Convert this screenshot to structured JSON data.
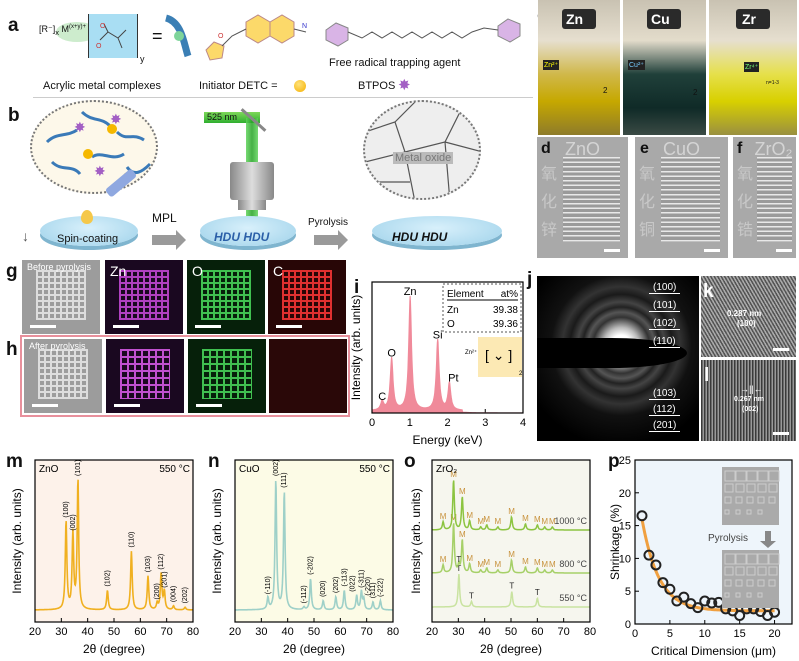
{
  "a": {
    "label": "a",
    "formula_ion": "[R⁻]",
    "formula_sub_x": "x",
    "formula_metal": "M",
    "formula_charge": "(x+y)+",
    "formula_sub_y": "y",
    "equals": "=",
    "caption_complex": "Acrylic metal complexes",
    "caption_detc": "Initiator DETC =",
    "caption_btpos": "BTPOS",
    "caption_trap": "Free radical trapping agent",
    "detc_color": "#f5b800",
    "btpos_color": "#a35fc4"
  },
  "b": {
    "label": "b",
    "wavelength": "525 nm",
    "step1": "Spin-coating",
    "step2": "MPL",
    "pattern1": "HDU HDU",
    "step3": "Pyrolysis",
    "pattern2": "HDU HDU",
    "metal_oxide": "Metal oxide"
  },
  "c": {
    "label": "c",
    "vials": [
      {
        "metal": "Zn",
        "ion": "Zn²⁺",
        "sub": "2"
      },
      {
        "metal": "Cu",
        "ion": "Cu²⁺",
        "sub": "2"
      },
      {
        "metal": "Zr",
        "ion": "Zr⁴⁺",
        "sub": "n=1-3"
      }
    ]
  },
  "d": {
    "label": "d",
    "title": "ZnO",
    "chinese": "氧化锌"
  },
  "e": {
    "label": "e",
    "title": "CuO",
    "chinese": "氧化铜"
  },
  "f": {
    "label": "f",
    "title": "ZrO₂",
    "chinese": "氧化锆"
  },
  "g": {
    "label": "g",
    "sem_label": "Before pyrolysis",
    "maps": [
      "Zn",
      "O",
      "C"
    ]
  },
  "h": {
    "label": "h",
    "sem_label": "After pyrolysis"
  },
  "j": {
    "label": "j",
    "planes_top": [
      "(100)",
      "(101)",
      "(102)",
      "(110)"
    ],
    "planes_bottom": [
      "(103)",
      "(112)",
      "(201)"
    ]
  },
  "k": {
    "label": "k",
    "spacing": "0.287 nm",
    "plane": "(100)"
  },
  "l": {
    "label": "l",
    "spacing": "0.267 nm",
    "plane": "(002)"
  },
  "chart_data": [
    {
      "panel": "i",
      "type": "line",
      "xlabel": "Energy (keV)",
      "ylabel": "Intensity (arb. units)",
      "xlim": [
        0,
        4
      ],
      "xticks": [
        0,
        1,
        2,
        3,
        4
      ],
      "color": "#f08a9a",
      "peaks": [
        {
          "x": 0.27,
          "y": 8,
          "label": "C"
        },
        {
          "x": 0.52,
          "y": 46,
          "label": "O"
        },
        {
          "x": 1.01,
          "y": 100,
          "label": "Zn"
        },
        {
          "x": 1.74,
          "y": 62,
          "label": "Si"
        },
        {
          "x": 2.05,
          "y": 24,
          "label": "Pt"
        }
      ],
      "table": {
        "headers": [
          "Element",
          "at%"
        ],
        "rows": [
          [
            "Zn",
            "39.38"
          ],
          [
            "O",
            "39.36"
          ]
        ]
      },
      "inset_ion": "Zn²⁺",
      "inset_sub": "2"
    },
    {
      "panel": "m",
      "type": "line",
      "title": "ZnO",
      "temperature": "550 °C",
      "xlabel": "2θ (degree)",
      "ylabel": "Intensity (arb. units)",
      "xlim": [
        20,
        80
      ],
      "xticks": [
        20,
        30,
        40,
        50,
        60,
        70,
        80
      ],
      "color": "#f0b020",
      "background": "#fdf2ea",
      "peaks": [
        {
          "x": 31.8,
          "y": 68,
          "label": "(100)"
        },
        {
          "x": 34.4,
          "y": 58,
          "label": "(002)"
        },
        {
          "x": 36.3,
          "y": 100,
          "label": "(101)"
        },
        {
          "x": 47.5,
          "y": 15,
          "label": "(102)"
        },
        {
          "x": 56.6,
          "y": 45,
          "label": "(110)"
        },
        {
          "x": 62.9,
          "y": 26,
          "label": "(103)"
        },
        {
          "x": 66.4,
          "y": 5,
          "label": "(200)"
        },
        {
          "x": 67.9,
          "y": 28,
          "label": "(112)"
        },
        {
          "x": 69.1,
          "y": 14,
          "label": "(201)"
        },
        {
          "x": 72.6,
          "y": 3,
          "label": "(004)"
        },
        {
          "x": 77.0,
          "y": 2,
          "label": "(202)"
        }
      ]
    },
    {
      "panel": "n",
      "type": "line",
      "title": "CuO",
      "temperature": "550 °C",
      "xlabel": "2θ (degree)",
      "ylabel": "Intensity (arb. units)",
      "xlim": [
        20,
        80
      ],
      "xticks": [
        20,
        30,
        40,
        50,
        60,
        70,
        80
      ],
      "color": "#9ed0c8",
      "background": "#fcfbe6",
      "peaks": [
        {
          "x": 32.5,
          "y": 9,
          "label": "(-110)"
        },
        {
          "x": 35.5,
          "y": 100,
          "label": "(002)"
        },
        {
          "x": 38.7,
          "y": 91,
          "label": "(111)"
        },
        {
          "x": 46.2,
          "y": 2,
          "label": "(-112)"
        },
        {
          "x": 48.7,
          "y": 24,
          "label": "(-202)"
        },
        {
          "x": 53.5,
          "y": 7,
          "label": "(020)"
        },
        {
          "x": 58.3,
          "y": 10,
          "label": "(202)"
        },
        {
          "x": 61.5,
          "y": 15,
          "label": "(-113)"
        },
        {
          "x": 66.2,
          "y": 11,
          "label": "(022)"
        },
        {
          "x": 68.0,
          "y": 14,
          "label": "(-311)"
        },
        {
          "x": 68.9,
          "y": 8,
          "label": "(-220)"
        },
        {
          "x": 72.4,
          "y": 6,
          "label": "(311)"
        },
        {
          "x": 75.2,
          "y": 7,
          "label": "(-222)"
        }
      ]
    },
    {
      "panel": "o",
      "type": "line",
      "title": "ZrO₂",
      "xlabel": "2θ (degree)",
      "ylabel": "Intensity (arb. units)",
      "xlim": [
        20,
        80
      ],
      "xticks": [
        20,
        30,
        40,
        50,
        60,
        70,
        80
      ],
      "background": "#f6f6ee",
      "label_color": "#c8923c",
      "series": [
        {
          "name": "550 °C",
          "color": "#c9e3a0",
          "peaks": [
            {
              "x": 30.2,
              "y": 30,
              "label": "T"
            },
            {
              "x": 35.0,
              "y": 5,
              "label": "T"
            },
            {
              "x": 50.3,
              "y": 14,
              "label": "T"
            },
            {
              "x": 60.0,
              "y": 8,
              "label": "T"
            }
          ]
        },
        {
          "name": "800 °C",
          "color": "#a6d068",
          "peaks": [
            {
              "x": 24.2,
              "y": 8,
              "label": "M"
            },
            {
              "x": 28.2,
              "y": 50,
              "label": "M"
            },
            {
              "x": 30.2,
              "y": 8,
              "label": "T"
            },
            {
              "x": 31.5,
              "y": 33,
              "label": "M"
            },
            {
              "x": 34.3,
              "y": 9,
              "label": "M"
            },
            {
              "x": 38.5,
              "y": 3,
              "label": "M"
            },
            {
              "x": 40.8,
              "y": 5,
              "label": "M"
            },
            {
              "x": 45.0,
              "y": 3,
              "label": "M"
            },
            {
              "x": 50.2,
              "y": 13,
              "label": "M"
            },
            {
              "x": 55.5,
              "y": 6,
              "label": "M"
            },
            {
              "x": 60.0,
              "y": 5,
              "label": "M"
            },
            {
              "x": 62.8,
              "y": 3,
              "label": "M"
            },
            {
              "x": 65.7,
              "y": 3,
              "label": "M"
            }
          ]
        },
        {
          "name": "1000 °C",
          "color": "#8cc440",
          "peaks": [
            {
              "x": 24.2,
              "y": 8,
              "label": "M"
            },
            {
              "x": 28.2,
              "y": 50,
              "label": "M"
            },
            {
              "x": 31.5,
              "y": 33,
              "label": "M"
            },
            {
              "x": 34.3,
              "y": 9,
              "label": "M"
            },
            {
              "x": 38.5,
              "y": 3,
              "label": "M"
            },
            {
              "x": 40.8,
              "y": 5,
              "label": "M"
            },
            {
              "x": 45.0,
              "y": 3,
              "label": "M"
            },
            {
              "x": 50.2,
              "y": 13,
              "label": "M"
            },
            {
              "x": 55.5,
              "y": 6,
              "label": "M"
            },
            {
              "x": 60.0,
              "y": 5,
              "label": "M"
            },
            {
              "x": 62.8,
              "y": 3,
              "label": "M"
            },
            {
              "x": 65.7,
              "y": 3,
              "label": "M"
            }
          ]
        }
      ]
    },
    {
      "panel": "p",
      "type": "scatter",
      "xlabel": "Critical Dimension (μm)",
      "ylabel": "Shrinkage (%)",
      "xlim": [
        0,
        22.5
      ],
      "ylim": [
        0,
        25
      ],
      "xticks": [
        0,
        5,
        10,
        15,
        20
      ],
      "yticks": [
        0,
        5,
        10,
        15,
        20,
        25
      ],
      "background": "#eef5fb",
      "fit_color": "#f0a040",
      "inset_label": "Pyrolysis",
      "x": [
        1,
        2,
        3,
        4,
        5,
        6,
        7,
        8,
        9,
        10,
        11,
        12,
        13,
        14,
        15,
        16,
        17,
        18,
        19,
        20
      ],
      "y": [
        16.5,
        10.5,
        9.0,
        6.3,
        5.3,
        3.5,
        4.1,
        3.1,
        2.5,
        3.5,
        3.2,
        3.3,
        2.3,
        2.0,
        1.3,
        2.3,
        2.3,
        1.9,
        1.3,
        1.8
      ]
    }
  ]
}
